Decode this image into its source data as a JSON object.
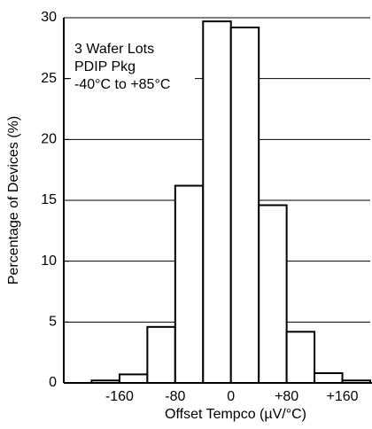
{
  "chart_data": {
    "type": "histogram",
    "annotation": [
      "3 Wafer Lots",
      "PDIP Pkg",
      "-40°C to +85°C"
    ],
    "x_label": "Offset Tempco (µV/°C)",
    "y_label": "Percentage of Devices (%)",
    "bins": [
      -200,
      -160,
      -120,
      -80,
      -40,
      0,
      40,
      80,
      120,
      160,
      200
    ],
    "values": [
      0.2,
      0.7,
      4.6,
      16.2,
      29.7,
      29.2,
      14.6,
      4.2,
      0.8,
      0.2
    ],
    "color": "#ffffff",
    "xlim": [
      -240,
      200
    ],
    "xticks": [
      -160,
      -80,
      0,
      {
        "value": 80,
        "label": "+80"
      },
      {
        "value": 160,
        "label": "+160"
      }
    ],
    "ylim": [
      0,
      30
    ],
    "yticks": [
      0,
      5,
      10,
      15,
      20,
      25,
      30
    ],
    "grid": true
  }
}
